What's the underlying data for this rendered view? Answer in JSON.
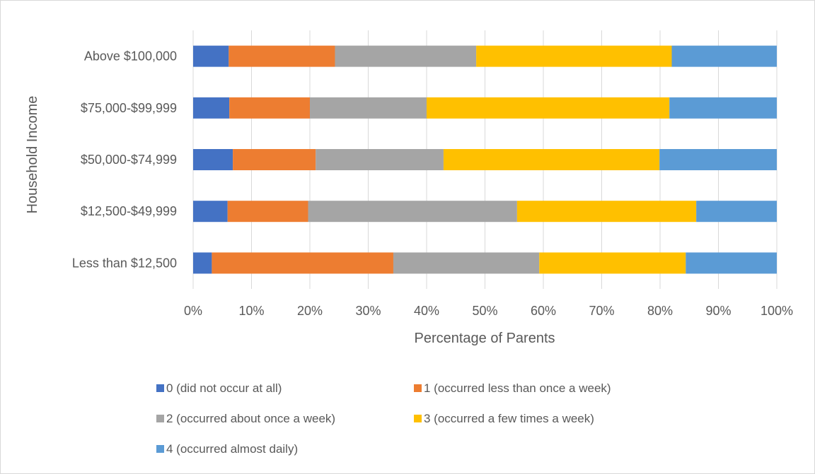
{
  "chart_data": {
    "type": "bar",
    "orientation": "horizontal",
    "stacked": "percent",
    "title": "",
    "xlabel": "Percentage of Parents",
    "ylabel": "Household Income",
    "xlim": [
      0,
      100
    ],
    "x_ticks": [
      "0%",
      "10%",
      "20%",
      "30%",
      "40%",
      "50%",
      "60%",
      "70%",
      "80%",
      "90%",
      "100%"
    ],
    "grid": "vertical",
    "legend_position": "bottom",
    "categories": [
      "Less than $12,500",
      "$12,500-$49,999",
      "$50,000-$74,999",
      "$75,000-$99,999",
      "Above $100,000"
    ],
    "series": [
      {
        "name": "0 (did not occur at all)",
        "color": "#4472C4",
        "values": [
          3.2,
          5.9,
          6.8,
          6.2,
          6.1
        ]
      },
      {
        "name": "1 (occurred less than once a week)",
        "color": "#ED7D31",
        "values": [
          31.1,
          13.8,
          14.2,
          13.8,
          18.2
        ]
      },
      {
        "name": "2 (occurred about once a week)",
        "color": "#A5A5A5",
        "values": [
          25.0,
          35.8,
          21.9,
          20.0,
          24.2
        ]
      },
      {
        "name": "3 (occurred a few times a week)",
        "color": "#FFC000",
        "values": [
          25.1,
          30.7,
          37.0,
          41.6,
          33.5
        ]
      },
      {
        "name": "4 (occurred almost daily)",
        "color": "#5B9BD5",
        "values": [
          15.6,
          13.8,
          20.1,
          18.4,
          18.0
        ]
      }
    ]
  }
}
